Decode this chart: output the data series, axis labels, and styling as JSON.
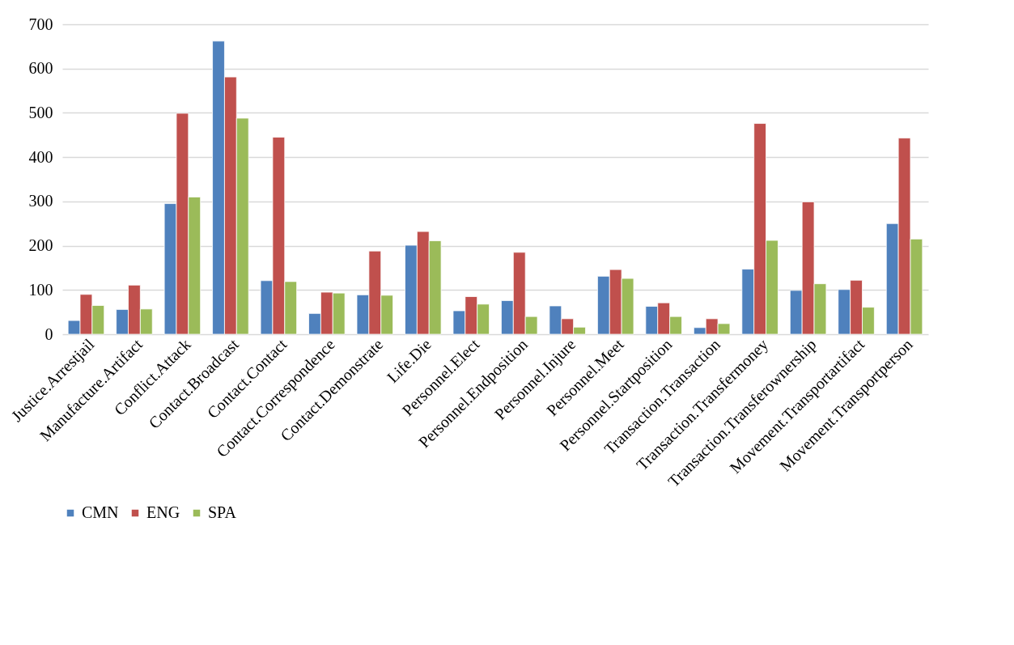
{
  "chart_data": {
    "type": "bar",
    "categories": [
      "Justice.Arrestjail",
      "Manufacture.Artifact",
      "Conflict.Attack",
      "Contact.Broadcast",
      "Contact.Contact",
      "Contact.Correspondence",
      "Contact.Demonstrate",
      "Life.Die",
      "Personnel.Elect",
      "Personnel.Endposition",
      "Personnel.Injure",
      "Personnel.Meet",
      "Personnel.Startposition",
      "Transaction.Transaction",
      "Transaction.Transfermoney",
      "Transaction.Transferownership",
      "Movement.Transportartifact",
      "Movement.Transportperson"
    ],
    "series": [
      {
        "name": "CMN",
        "color": "#4f81bd",
        "values": [
          31,
          56,
          295,
          662,
          121,
          47,
          89,
          201,
          53,
          76,
          64,
          131,
          63,
          15,
          147,
          99,
          101,
          250
        ]
      },
      {
        "name": "ENG",
        "color": "#c0504d",
        "values": [
          90,
          111,
          499,
          581,
          445,
          95,
          188,
          232,
          85,
          185,
          35,
          146,
          71,
          35,
          476,
          299,
          122,
          443
        ]
      },
      {
        "name": "SPA",
        "color": "#9bbb59",
        "values": [
          65,
          57,
          310,
          488,
          119,
          93,
          88,
          211,
          68,
          40,
          16,
          126,
          40,
          24,
          212,
          114,
          61,
          215
        ]
      }
    ],
    "ylim": [
      0,
      700
    ],
    "yticks": [
      0,
      100,
      200,
      300,
      400,
      500,
      600,
      700
    ],
    "grid": "y",
    "legend": "bottom"
  }
}
